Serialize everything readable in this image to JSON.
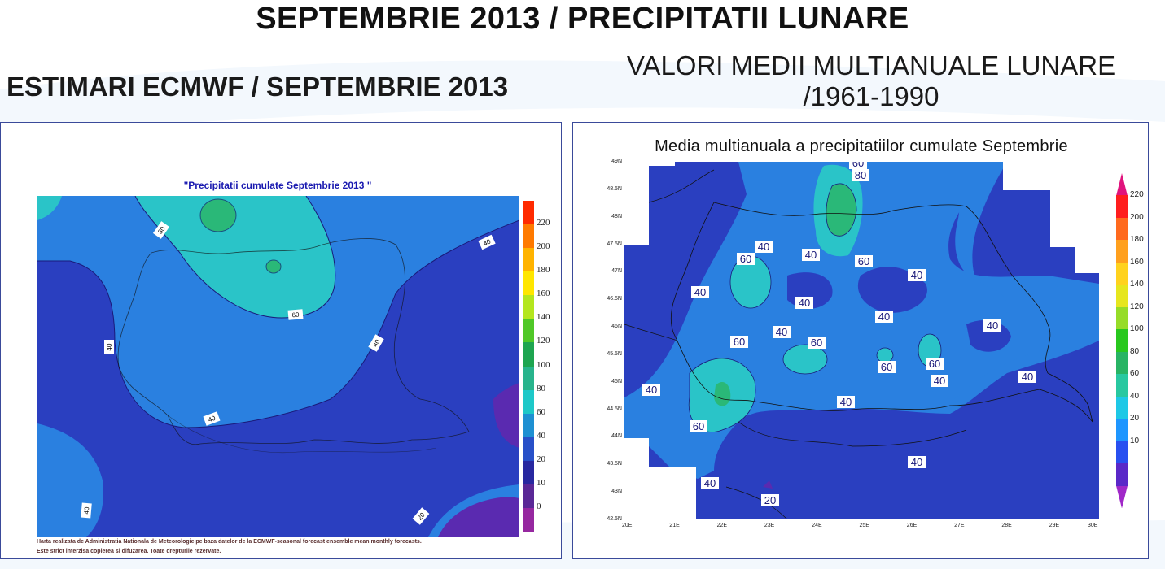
{
  "page": {
    "title": "SEPTEMBRIE 2013 / PRECIPITATII LUNARE",
    "left_heading": "ESTIMARI ECMWF / SEPTEMBRIE 2013",
    "right_heading_line1": "VALORI MEDII MULTIANUALE LUNARE",
    "right_heading_line2": "/1961-1990"
  },
  "left_map": {
    "title": "\"Precipitatii cumulate Septembrie 2013 \"",
    "contour_labels": [
      "80",
      "40",
      "60",
      "40",
      "40",
      "40",
      "40",
      "20"
    ],
    "colorbar_ticks": [
      "220",
      "200",
      "180",
      "160",
      "140",
      "120",
      "100",
      "80",
      "60",
      "40",
      "20",
      "10",
      "0"
    ],
    "colorbar_colors": [
      "#ff2a00",
      "#ff7a00",
      "#ffb300",
      "#ffe600",
      "#b4e61e",
      "#50c828",
      "#1ea550",
      "#28b48c",
      "#1ec8c8",
      "#1e90d2",
      "#2850c8",
      "#2828a0",
      "#5a2896",
      "#9628a0"
    ],
    "footnote_line1": "Harta realizata de Administratia Nationala de Meteorologie pe baza datelor de la ECMWF-seasonal forecast ensemble mean monthly forecasts.",
    "footnote_line2": "Este strict interzisa copierea si difuzarea. Toate drepturile rezervate."
  },
  "right_map": {
    "title": "Media multianuala a precipitatiilor cumulate Septembrie",
    "lat_ticks": [
      "49N",
      "48.5N",
      "48N",
      "47.5N",
      "47N",
      "46.5N",
      "46N",
      "45.5N",
      "45N",
      "44.5N",
      "44N",
      "43.5N",
      "43N",
      "42.5N"
    ],
    "lon_ticks": [
      "20E",
      "21E",
      "22E",
      "23E",
      "24E",
      "25E",
      "26E",
      "27E",
      "28E",
      "29E",
      "30E"
    ],
    "contour_labels": [
      "60",
      "80",
      "40",
      "40",
      "60",
      "60",
      "40",
      "40",
      "40",
      "40",
      "40",
      "40",
      "60",
      "60",
      "60",
      "60",
      "40",
      "40",
      "40",
      "40",
      "60",
      "40",
      "40",
      "20"
    ],
    "colorbar_ticks": [
      "220",
      "200",
      "180",
      "160",
      "140",
      "120",
      "100",
      "80",
      "60",
      "40",
      "20",
      "10"
    ],
    "colorbar_colors": [
      "#e0147d",
      "#ff1e1e",
      "#ff6a1e",
      "#ffa01e",
      "#ffd21e",
      "#e6e61e",
      "#96dc28",
      "#28c81e",
      "#28b464",
      "#28c8a0",
      "#1ec8e6",
      "#1e96ff",
      "#2850f0",
      "#5a28c8",
      "#a028c8"
    ]
  },
  "palette": {
    "dark_blue": "#2a3fc0",
    "mid_blue": "#2a80e0",
    "cyan": "#2ac4c8",
    "green": "#2ab878",
    "violet": "#5a2ab0"
  }
}
